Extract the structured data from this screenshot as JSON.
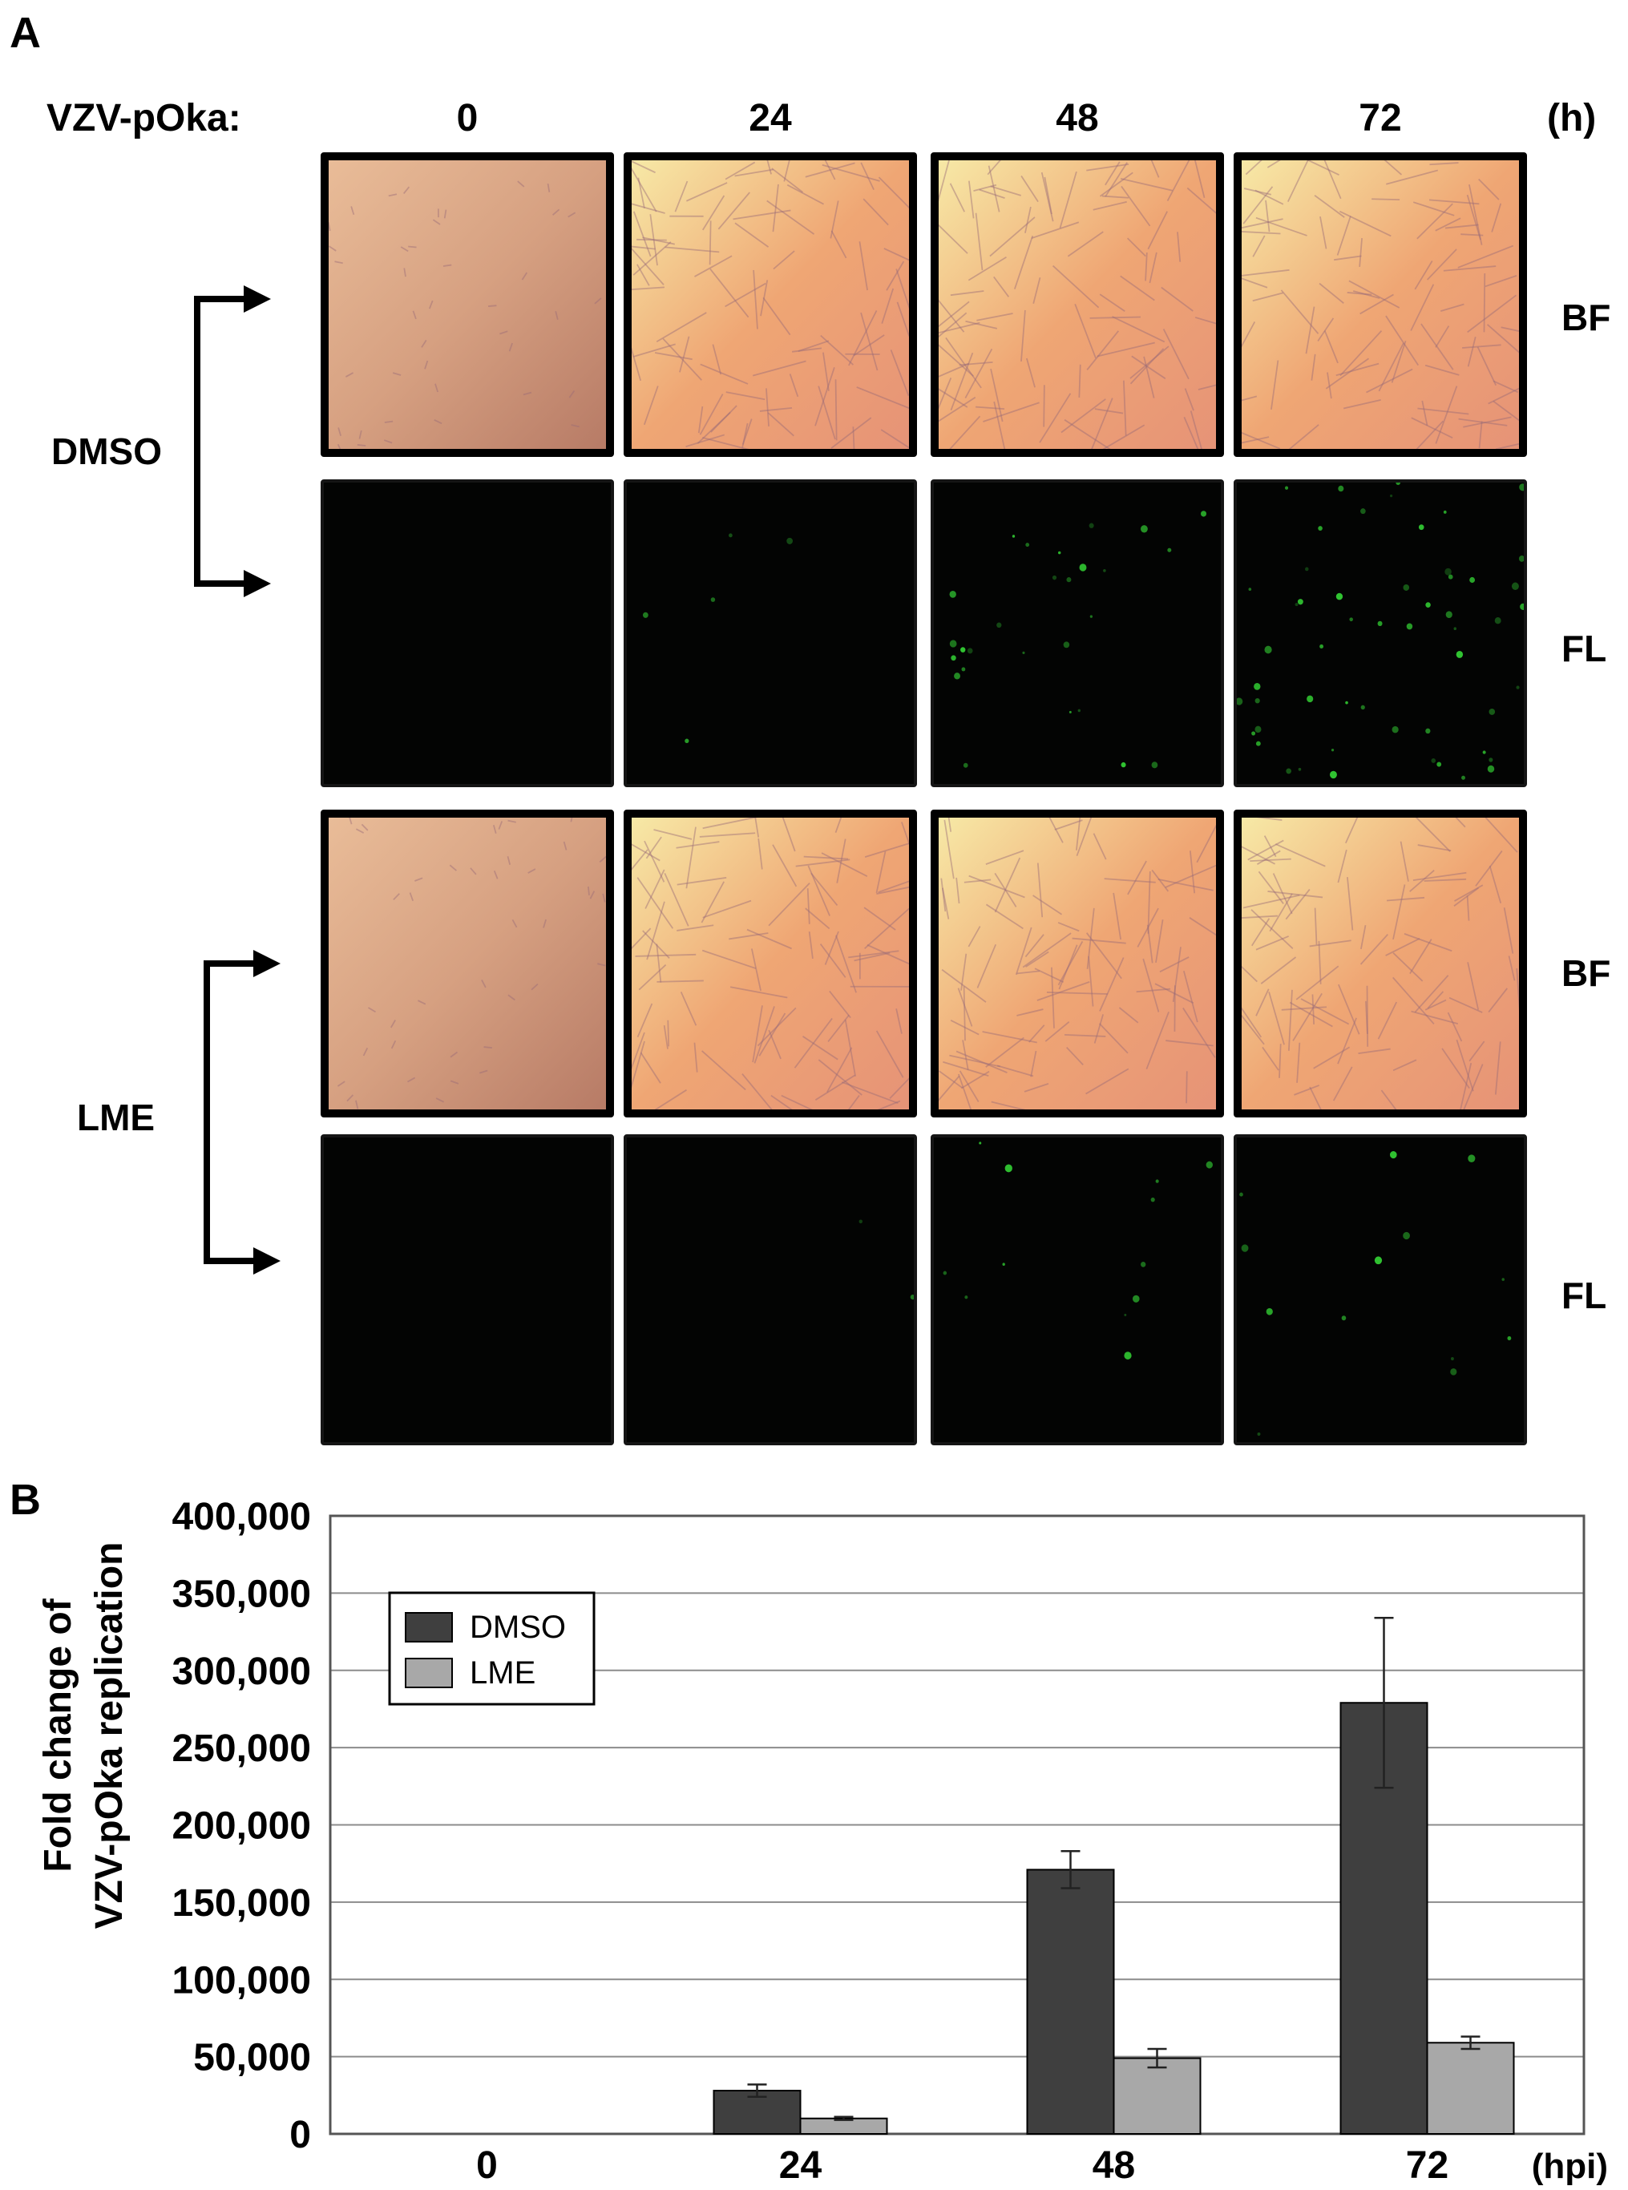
{
  "panel_a": {
    "letter": "A",
    "virus_label": "VZV-pOka:",
    "time_unit": "(h)",
    "timepoints": [
      "0",
      "24",
      "48",
      "72"
    ],
    "groups": [
      {
        "name": "DMSO",
        "rows": [
          {
            "label": "BF",
            "kind": "brightfield"
          },
          {
            "label": "FL",
            "kind": "fluorescence",
            "signal": [
              0.0,
              0.08,
              0.45,
              0.9
            ]
          }
        ]
      },
      {
        "name": "LME",
        "rows": [
          {
            "label": "BF",
            "kind": "brightfield"
          },
          {
            "label": "FL",
            "kind": "fluorescence",
            "signal": [
              0.0,
              0.03,
              0.2,
              0.22
            ]
          }
        ]
      }
    ],
    "colors": {
      "bf_bright": "#f7e9a6",
      "bf_mid": "#efa674",
      "bf_dark": "#b77b66",
      "fl_background": "#030403",
      "fl_signal": "#39e83a"
    }
  },
  "panel_b": {
    "letter": "B",
    "chart_data": {
      "type": "bar",
      "categories": [
        "0",
        "24",
        "48",
        "72"
      ],
      "series": [
        {
          "name": "DMSO",
          "color": "#3f3f3f",
          "values": [
            0,
            28000,
            171000,
            279000
          ],
          "errors": [
            0,
            4000,
            12000,
            55000
          ]
        },
        {
          "name": "LME",
          "color": "#a8a8a8",
          "values": [
            0,
            10000,
            49000,
            59000
          ],
          "errors": [
            0,
            1000,
            6000,
            4000
          ]
        }
      ],
      "ylabel_lines": [
        "Fold change of",
        "VZV-pOka replication"
      ],
      "xunit": "(hpi)",
      "ylim": [
        0,
        400000
      ],
      "yticks": [
        0,
        50000,
        100000,
        150000,
        200000,
        250000,
        300000,
        350000,
        400000
      ],
      "ytick_labels": [
        "0",
        "50,000",
        "100,000",
        "150,000",
        "200,000",
        "250,000",
        "300,000",
        "350,000",
        "400,000"
      ],
      "grid": true,
      "legend_position": "top-left"
    }
  }
}
